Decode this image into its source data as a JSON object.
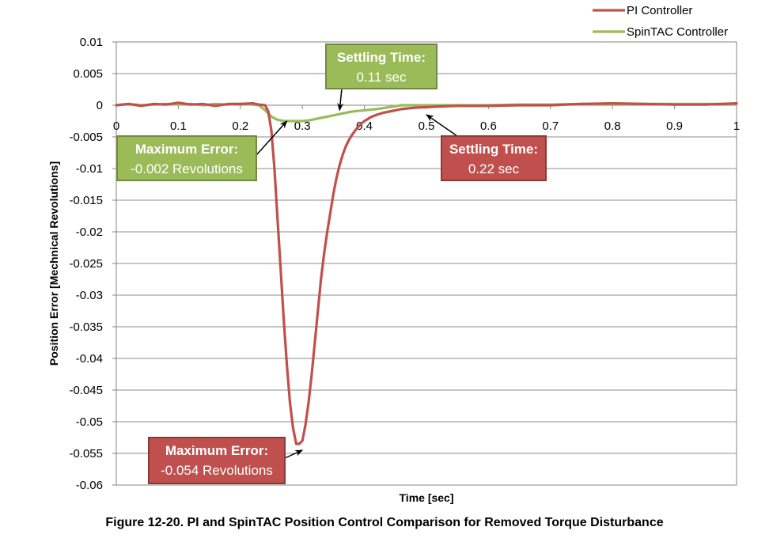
{
  "caption": "Figure 12-20. PI and SpinTAC Position Control Comparison for Removed Torque Disturbance",
  "chart_data": {
    "type": "line",
    "title": "",
    "xlabel": "Time [sec]",
    "ylabel": "Position Error [Mechnical Revolutions]",
    "xlim": [
      0,
      1
    ],
    "ylim": [
      -0.06,
      0.01
    ],
    "x_ticks": [
      "0",
      "0.1",
      "0.2",
      "0.3",
      "0.4",
      "0.5",
      "0.6",
      "0.7",
      "0.8",
      "0.9",
      "1"
    ],
    "y_ticks": [
      "0.01",
      "0.005",
      "0",
      "-0.005",
      "-0.01",
      "-0.015",
      "-0.02",
      "-0.025",
      "-0.03",
      "-0.035",
      "-0.04",
      "-0.045",
      "-0.05",
      "-0.055",
      "-0.06"
    ],
    "grid": "horizontal",
    "legend_position": "top-right",
    "series": [
      {
        "name": "PI Controller",
        "color": "#C0504D",
        "x": [
          0,
          0.02,
          0.04,
          0.06,
          0.08,
          0.1,
          0.12,
          0.14,
          0.16,
          0.18,
          0.2,
          0.22,
          0.23,
          0.24,
          0.245,
          0.25,
          0.255,
          0.26,
          0.265,
          0.27,
          0.275,
          0.28,
          0.285,
          0.29,
          0.295,
          0.3,
          0.305,
          0.31,
          0.315,
          0.32,
          0.325,
          0.33,
          0.335,
          0.34,
          0.345,
          0.35,
          0.355,
          0.36,
          0.365,
          0.37,
          0.375,
          0.38,
          0.385,
          0.39,
          0.395,
          0.4,
          0.41,
          0.42,
          0.43,
          0.44,
          0.45,
          0.46,
          0.47,
          0.48,
          0.5,
          0.52,
          0.55,
          0.6,
          0.65,
          0.7,
          0.75,
          0.8,
          0.85,
          0.9,
          0.95,
          1.0
        ],
        "values": [
          0,
          0.0002,
          -0.0001,
          0.0002,
          0.0001,
          0.0004,
          0.0001,
          0.0002,
          -0.0001,
          0.0002,
          0.0002,
          0.0003,
          0.0001,
          0.0,
          -0.001,
          -0.004,
          -0.01,
          -0.018,
          -0.026,
          -0.034,
          -0.041,
          -0.047,
          -0.051,
          -0.0535,
          -0.0535,
          -0.053,
          -0.0505,
          -0.047,
          -0.0425,
          -0.0375,
          -0.0325,
          -0.0275,
          -0.0235,
          -0.02,
          -0.017,
          -0.014,
          -0.0115,
          -0.0095,
          -0.0078,
          -0.0065,
          -0.0055,
          -0.0047,
          -0.004,
          -0.0034,
          -0.0029,
          -0.0025,
          -0.0019,
          -0.0015,
          -0.0012,
          -0.001,
          -0.0008,
          -0.0006,
          -0.0005,
          -0.0004,
          -0.0003,
          -0.0002,
          -0.0001,
          -0.0001,
          0.0,
          0.0,
          0.0002,
          0.0003,
          0.0002,
          0.0001,
          0.0001,
          0.0003
        ]
      },
      {
        "name": "SpinTAC Controller",
        "color": "#9BBB59",
        "x": [
          0,
          0.02,
          0.04,
          0.06,
          0.08,
          0.1,
          0.12,
          0.14,
          0.16,
          0.18,
          0.2,
          0.22,
          0.23,
          0.24,
          0.25,
          0.26,
          0.27,
          0.28,
          0.29,
          0.3,
          0.31,
          0.32,
          0.33,
          0.34,
          0.35,
          0.36,
          0.37,
          0.38,
          0.39,
          0.4,
          0.42,
          0.44,
          0.46,
          0.48,
          0.5,
          0.55,
          0.6,
          0.65,
          0.7,
          0.75,
          0.8,
          0.85,
          0.9,
          0.95,
          1.0
        ],
        "values": [
          0,
          0.0002,
          0.0,
          0.0001,
          0.0002,
          0.0001,
          0.0002,
          0.0,
          0.0002,
          0.0001,
          0.0002,
          0.0001,
          0.0,
          -0.0008,
          -0.0018,
          -0.0023,
          -0.0025,
          -0.0025,
          -0.0025,
          -0.0025,
          -0.0024,
          -0.0022,
          -0.002,
          -0.0018,
          -0.0016,
          -0.0014,
          -0.0012,
          -0.001,
          -0.0009,
          -0.0008,
          -0.0006,
          -0.0003,
          0.0,
          0.0,
          0.0,
          0.0,
          0.0,
          0.0001,
          0.0001,
          0.0002,
          0.0002,
          0.0002,
          0.0002,
          0.0002,
          0.0002
        ]
      }
    ],
    "annotations": [
      {
        "title": "Settling Time:",
        "value": "0.11 sec",
        "color": "#9BBB59",
        "border": "#71893F",
        "target": [
          0.36,
          -0.0008
        ]
      },
      {
        "title": "Maximum Error:",
        "value": "-0.002 Revolutions",
        "color": "#9BBB59",
        "border": "#71893F",
        "target": [
          0.275,
          -0.0025
        ]
      },
      {
        "title": "Settling Time:",
        "value": "0.22 sec",
        "color": "#C0504D",
        "border": "#8C3836",
        "target": [
          0.5,
          -0.0015
        ]
      },
      {
        "title": "Maximum Error:",
        "value": "-0.054 Revolutions",
        "color": "#C0504D",
        "border": "#8C3836",
        "target": [
          0.3,
          -0.0545
        ]
      }
    ]
  }
}
